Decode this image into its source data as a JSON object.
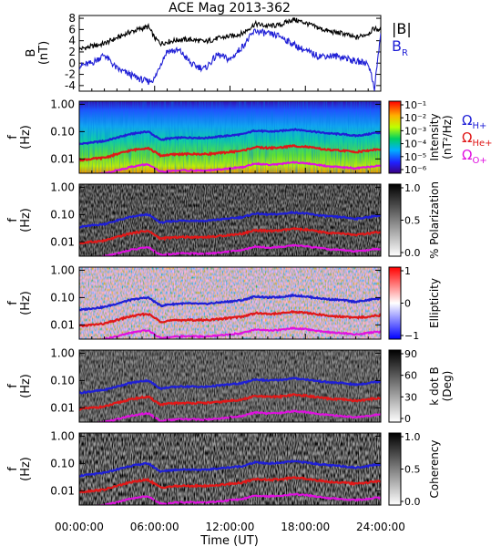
{
  "figure_title": "ACE Mag 2013-362",
  "x_axis": {
    "label": "Time (UT)",
    "ticks": [
      "00:00:00",
      "06:00:00",
      "12:00:00",
      "18:00:00",
      "24:00:00"
    ],
    "tick_hours": [
      0,
      6,
      12,
      18,
      24
    ]
  },
  "freq_axis": {
    "label_top": "f",
    "label_bottom": "(Hz)",
    "ticks": [
      "1.00",
      "0.10",
      "0.01"
    ],
    "tick_values": [
      1.0,
      0.1,
      0.01
    ],
    "range": [
      0.003,
      1.3
    ]
  },
  "legend_top": {
    "items": [
      {
        "text": "|B|",
        "color": "#000000"
      },
      {
        "text": "B",
        "sub": "R",
        "color": "#1f1fd6"
      }
    ]
  },
  "legend_gyro": [
    {
      "base": "Ω",
      "sub": "H+",
      "color": "#1f1fd6"
    },
    {
      "base": "Ω",
      "sub": "He+",
      "color": "#e01818"
    },
    {
      "base": "Ω",
      "sub": "O+",
      "color": "#e010e0"
    }
  ],
  "panels": [
    {
      "id": "intensity",
      "colormap": "rainbow",
      "colorbar_ticks": [
        "10⁻¹",
        "10⁻²",
        "10⁻³",
        "10⁻⁴",
        "10⁻⁵",
        "10⁻⁶"
      ],
      "colorbar_label": [
        "Intensity",
        "(nT²/Hz)"
      ]
    },
    {
      "id": "polarization",
      "colormap": "gray",
      "colorbar_ticks": [
        "1.0",
        "0.5",
        "0.0"
      ],
      "colorbar_label": [
        "% Polarization"
      ]
    },
    {
      "id": "ellipticity",
      "colormap": "bwr",
      "colorbar_ticks": [
        "1",
        "0",
        "−1"
      ],
      "colorbar_label": [
        "Ellipticity"
      ]
    },
    {
      "id": "kdotb",
      "colormap": "gray",
      "colorbar_ticks": [
        "90",
        "60",
        "30",
        "0"
      ],
      "colorbar_label": [
        "k dot B",
        "(Deg)"
      ]
    },
    {
      "id": "coherency",
      "colormap": "gray",
      "colorbar_ticks": [
        "1.0",
        "0.5",
        "0.0"
      ],
      "colorbar_label": [
        "Coherency"
      ]
    }
  ],
  "chart_data": {
    "type": "line",
    "title": "ACE Mag 2013-362",
    "xlabel": "Time (UT)",
    "ylabel": "B (nT)",
    "xlim": [
      0,
      24
    ],
    "ylim": [
      -5,
      8.5
    ],
    "y_ticks": [
      -4,
      -2,
      0,
      2,
      4,
      6,
      8
    ],
    "x_hours": [
      0,
      1,
      2,
      3,
      4,
      5,
      5.5,
      6,
      6.5,
      7,
      8,
      9,
      10,
      11,
      12,
      13,
      14,
      15,
      16,
      17,
      18,
      19,
      20,
      21,
      22,
      23,
      23.5,
      24
    ],
    "series": [
      {
        "name": "|B|",
        "color": "#000000",
        "values": [
          2.5,
          3,
          3.5,
          4.5,
          5.5,
          6.2,
          6.5,
          4.5,
          3.5,
          3.8,
          4.2,
          4.2,
          3.8,
          4.4,
          4.8,
          5.3,
          7.0,
          6.6,
          6.8,
          7.8,
          7.2,
          6.3,
          5.6,
          5.3,
          4.5,
          5.3,
          6.2,
          5.8
        ]
      },
      {
        "name": "B",
        "name_sub": "R",
        "color": "#1f1fd6",
        "values": [
          -0.5,
          0,
          1.5,
          -1,
          -2,
          -3,
          -3.3,
          -2.8,
          0,
          2.2,
          2.2,
          -0.3,
          -1.0,
          1.5,
          0.6,
          3.0,
          5.8,
          5.2,
          4.8,
          3.4,
          2.2,
          1.3,
          1.3,
          1.1,
          0.3,
          0.0,
          -4.4,
          5.3
        ]
      }
    ],
    "gyrofrequency_lines": [
      {
        "name": "Ω_H+",
        "color": "#1f1fd6",
        "values_hz": [
          0.035,
          0.04,
          0.045,
          0.06,
          0.08,
          0.095,
          0.1,
          0.07,
          0.05,
          0.055,
          0.06,
          0.06,
          0.058,
          0.065,
          0.072,
          0.08,
          0.11,
          0.1,
          0.105,
          0.12,
          0.11,
          0.095,
          0.085,
          0.08,
          0.07,
          0.08,
          0.09,
          0.09
        ]
      },
      {
        "name": "Ω_He+",
        "color": "#e01818",
        "values_hz": [
          0.009,
          0.01,
          0.011,
          0.015,
          0.02,
          0.024,
          0.025,
          0.018,
          0.013,
          0.014,
          0.015,
          0.015,
          0.015,
          0.016,
          0.018,
          0.02,
          0.027,
          0.025,
          0.026,
          0.03,
          0.028,
          0.024,
          0.021,
          0.02,
          0.018,
          0.02,
          0.022,
          0.022
        ]
      },
      {
        "name": "Ω_O+",
        "color": "#e010e0",
        "values_hz": [
          0.0025,
          0.0026,
          0.003,
          0.0038,
          0.005,
          0.006,
          0.0063,
          0.0045,
          0.0033,
          0.0035,
          0.0038,
          0.0038,
          0.0037,
          0.004,
          0.0045,
          0.005,
          0.0068,
          0.0062,
          0.0065,
          0.0075,
          0.007,
          0.006,
          0.0053,
          0.005,
          0.0045,
          0.005,
          0.0055,
          0.0055
        ]
      }
    ]
  }
}
